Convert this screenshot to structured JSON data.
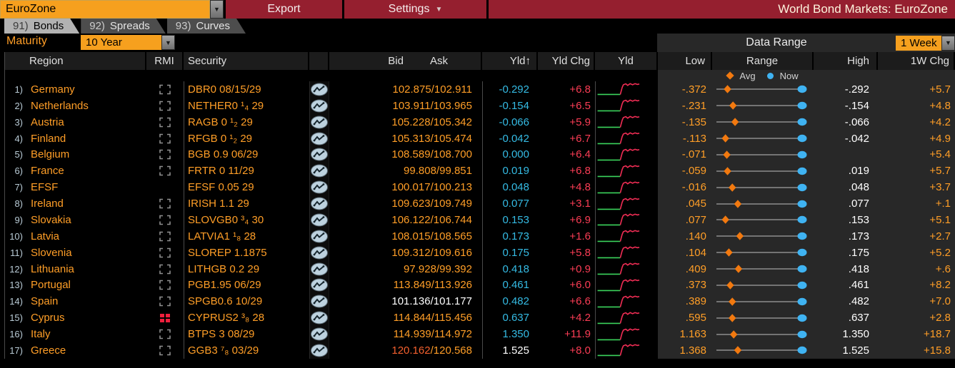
{
  "titlebar": {
    "source": "EuroZone",
    "export_label": "Export",
    "settings_label": "Settings",
    "title": "World Bond Markets: EuroZone"
  },
  "tabs": [
    {
      "num": "91)",
      "label": "Bonds",
      "active": true
    },
    {
      "num": "92)",
      "label": "Spreads",
      "active": false
    },
    {
      "num": "93)",
      "label": "Curves",
      "active": false
    }
  ],
  "toolbar": {
    "maturity_label": "Maturity",
    "maturity_value": "10 Year",
    "data_range_label": "Data Range",
    "data_range_value": "1 Week"
  },
  "columns": {
    "region": "Region",
    "rmi": "RMI",
    "security": "Security",
    "bid": "Bid",
    "ask": "Ask",
    "yld_sorted": "Yld↑",
    "yld_chg": "Yld Chg",
    "yld_spark": "Yld",
    "low": "Low",
    "range": "Range",
    "high": "High",
    "wchg": "1W Chg"
  },
  "legend": {
    "avg": "Avg",
    "now": "Now"
  },
  "colors": {
    "amber": "#ff9e27",
    "cyan": "#35bbe4",
    "chg_red": "#fb3d55",
    "white": "#ffffff",
    "spark_green": "#3bd45c",
    "spark_red": "#f22d55",
    "panel": "#282828",
    "avg_diamond": "#f2790f",
    "now_blue": "#3fb3f2",
    "track_gray": "#8d8d8d",
    "greece_bid_red": "#f4602e"
  },
  "sparkline_shape": {
    "green": [
      [
        0.03,
        0.84
      ],
      [
        0.4,
        0.84
      ]
    ],
    "red": [
      [
        0.4,
        0.84
      ],
      [
        0.43,
        0.4
      ],
      [
        0.45,
        0.22
      ],
      [
        0.49,
        0.16
      ],
      [
        0.52,
        0.26
      ],
      [
        0.56,
        0.15
      ],
      [
        0.6,
        0.22
      ],
      [
        0.64,
        0.15
      ],
      [
        0.68,
        0.2
      ],
      [
        0.71,
        0.17
      ]
    ]
  },
  "range_plot": {
    "track_start": 6,
    "track_end": 126,
    "now_frac": 1.0
  },
  "rows": [
    {
      "num": "1)",
      "region": "Germany",
      "rmi": "bracket",
      "security": "DBR0 08/15/29",
      "bid": "102.875",
      "ask": "102.911",
      "quote": "amber",
      "yld": "-0.292",
      "yld_color": "cyan",
      "yld_chg": "+6.8",
      "low": "-.372",
      "avg_pos": 0.12,
      "high": "-.292",
      "wchg": "+5.7"
    },
    {
      "num": "2)",
      "region": "Netherlands",
      "rmi": "bracket",
      "security": "NETHER0 ¹₄ 29",
      "bid": "103.911",
      "ask": "103.965",
      "quote": "amber",
      "yld": "-0.154",
      "yld_color": "cyan",
      "yld_chg": "+6.5",
      "low": "-.231",
      "avg_pos": 0.2,
      "high": "-.154",
      "wchg": "+4.8"
    },
    {
      "num": "3)",
      "region": "Austria",
      "rmi": "bracket",
      "security": "RAGB 0 ¹₂ 29",
      "bid": "105.228",
      "ask": "105.342",
      "quote": "amber",
      "yld": "-0.066",
      "yld_color": "cyan",
      "yld_chg": "+5.9",
      "low": "-.135",
      "avg_pos": 0.23,
      "high": "-.066",
      "wchg": "+4.2"
    },
    {
      "num": "4)",
      "region": "Finland",
      "rmi": "bracket",
      "security": "RFGB 0 ¹₂ 29",
      "bid": "105.313",
      "ask": "105.474",
      "quote": "amber",
      "yld": "-0.042",
      "yld_color": "cyan",
      "yld_chg": "+6.7",
      "low": "-.113",
      "avg_pos": 0.09,
      "high": "-.042",
      "wchg": "+4.9"
    },
    {
      "num": "5)",
      "region": "Belgium",
      "rmi": "bracket",
      "security": "BGB 0.9 06/29",
      "bid": "108.589",
      "ask": "108.700",
      "quote": "amber",
      "yld": "0.000",
      "yld_color": "cyan",
      "yld_chg": "+6.4",
      "low": "-.071",
      "avg_pos": 0.11,
      "high": "",
      "wchg": "+5.4"
    },
    {
      "num": "6)",
      "region": "France",
      "rmi": "bracket",
      "security": "FRTR 0 11/29",
      "bid": "99.808",
      "ask": "99.851",
      "quote": "amber",
      "yld": "0.019",
      "yld_color": "cyan",
      "yld_chg": "+6.8",
      "low": "-.059",
      "avg_pos": 0.12,
      "high": ".019",
      "wchg": "+5.7"
    },
    {
      "num": "7)",
      "region": "EFSF",
      "rmi": "none",
      "security": "EFSF 0.05 29",
      "bid": "100.017",
      "ask": "100.213",
      "quote": "amber",
      "yld": "0.048",
      "yld_color": "cyan",
      "yld_chg": "+4.8",
      "low": "-.016",
      "avg_pos": 0.19,
      "high": ".048",
      "wchg": "+3.7"
    },
    {
      "num": "8)",
      "region": "Ireland",
      "rmi": "bracket",
      "security": "IRISH 1.1 29",
      "bid": "109.623",
      "ask": "109.749",
      "quote": "amber",
      "yld": "0.077",
      "yld_color": "cyan",
      "yld_chg": "+3.1",
      "low": ".045",
      "avg_pos": 0.27,
      "high": ".077",
      "wchg": "+.1"
    },
    {
      "num": "9)",
      "region": "Slovakia",
      "rmi": "bracket",
      "security": "SLOVGB0 ³₄ 30",
      "bid": "106.122",
      "ask": "106.744",
      "quote": "amber",
      "yld": "0.153",
      "yld_color": "cyan",
      "yld_chg": "+6.9",
      "low": ".077",
      "avg_pos": 0.09,
      "high": ".153",
      "wchg": "+5.1"
    },
    {
      "num": "10)",
      "region": "Latvia",
      "rmi": "bracket",
      "security": "LATVIA1 ¹₈ 28",
      "bid": "108.015",
      "ask": "108.565",
      "quote": "amber",
      "yld": "0.173",
      "yld_color": "cyan",
      "yld_chg": "+1.6",
      "low": ".140",
      "avg_pos": 0.3,
      "high": ".173",
      "wchg": "+2.7"
    },
    {
      "num": "11)",
      "region": "Slovenia",
      "rmi": "bracket",
      "security": "SLOREP 1.1875",
      "bid": "109.312",
      "ask": "109.616",
      "quote": "amber",
      "yld": "0.175",
      "yld_color": "cyan",
      "yld_chg": "+5.8",
      "low": ".104",
      "avg_pos": 0.14,
      "high": ".175",
      "wchg": "+5.2"
    },
    {
      "num": "12)",
      "region": "Lithuania",
      "rmi": "bracket",
      "security": "LITHGB 0.2 29",
      "bid": "97.928",
      "ask": "99.392",
      "quote": "amber",
      "yld": "0.418",
      "yld_color": "cyan",
      "yld_chg": "+0.9",
      "low": ".409",
      "avg_pos": 0.28,
      "high": ".418",
      "wchg": "+.6"
    },
    {
      "num": "13)",
      "region": "Portugal",
      "rmi": "bracket",
      "security": "PGB1.95 06/29",
      "bid": "113.849",
      "ask": "113.926",
      "quote": "amber",
      "yld": "0.461",
      "yld_color": "cyan",
      "yld_chg": "+6.0",
      "low": ".373",
      "avg_pos": 0.16,
      "high": ".461",
      "wchg": "+8.2"
    },
    {
      "num": "14)",
      "region": "Spain",
      "rmi": "bracket",
      "security": "SPGB0.6 10/29",
      "bid": "101.136",
      "ask": "101.177",
      "quote": "white",
      "yld": "0.482",
      "yld_color": "cyan",
      "yld_chg": "+6.6",
      "low": ".389",
      "avg_pos": 0.19,
      "high": ".482",
      "wchg": "+7.0"
    },
    {
      "num": "15)",
      "region": "Cyprus",
      "rmi": "red-grid",
      "security": "CYPRUS2 ³₈ 28",
      "bid": "114.844",
      "ask": "115.456",
      "quote": "amber",
      "yld": "0.637",
      "yld_color": "cyan",
      "yld_chg": "+4.2",
      "low": ".595",
      "avg_pos": 0.19,
      "high": ".637",
      "wchg": "+2.8"
    },
    {
      "num": "16)",
      "region": "Italy",
      "rmi": "bracket",
      "security": "BTPS 3 08/29",
      "bid": "114.939",
      "ask": "114.972",
      "quote": "amber",
      "yld": "1.350",
      "yld_color": "cyan",
      "yld_chg": "+11.9",
      "low": "1.163",
      "avg_pos": 0.21,
      "high": "1.350",
      "wchg": "+18.7"
    },
    {
      "num": "17)",
      "region": "Greece",
      "rmi": "bracket",
      "security": "GGB3 ⁷₈ 03/29",
      "bid": "120.162",
      "ask": "120.568",
      "quote": "greece",
      "yld": "1.525",
      "yld_color": "white",
      "yld_chg": "+8.0",
      "low": "1.368",
      "avg_pos": 0.27,
      "high": "1.525",
      "wchg": "+15.8"
    }
  ]
}
